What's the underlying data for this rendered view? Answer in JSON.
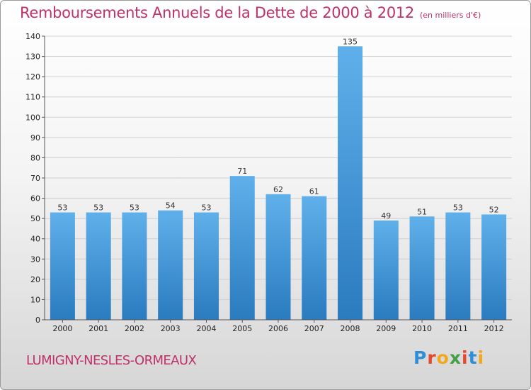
{
  "title": "Remboursements Annuels de la Dette de 2000 à 2012",
  "subtitle": "(en milliers d'€)",
  "town": "LUMIGNY-NESLES-ORMEAUX",
  "logo": {
    "letters": [
      "P",
      "r",
      "o",
      "x",
      "i",
      "t",
      "i"
    ],
    "colors": [
      "#2f8fd6",
      "#e7482e",
      "#f2a81d",
      "#43a047",
      "#e7482e",
      "#2f8fd6",
      "#f2a81d"
    ]
  },
  "colors": {
    "title": "#c0306a",
    "bar_top": "#5fb0ea",
    "bar_bottom": "#2a7bbf",
    "grid": "#cfcfcf",
    "axis": "#555555"
  },
  "chart_data": {
    "type": "bar",
    "title": "Remboursements Annuels de la Dette de 2000 à 2012",
    "subtitle": "(en milliers d'€)",
    "xlabel": "",
    "ylabel": "",
    "categories": [
      "2000",
      "2001",
      "2002",
      "2003",
      "2004",
      "2005",
      "2006",
      "2007",
      "2008",
      "2009",
      "2010",
      "2011",
      "2012"
    ],
    "values": [
      53,
      53,
      53,
      54,
      53,
      71,
      62,
      61,
      135,
      49,
      51,
      53,
      52
    ],
    "ylim": [
      0,
      140
    ],
    "yticks": [
      0,
      10,
      20,
      30,
      40,
      50,
      60,
      70,
      80,
      90,
      100,
      110,
      120,
      130,
      140
    ],
    "grid": true,
    "legend": "none"
  }
}
